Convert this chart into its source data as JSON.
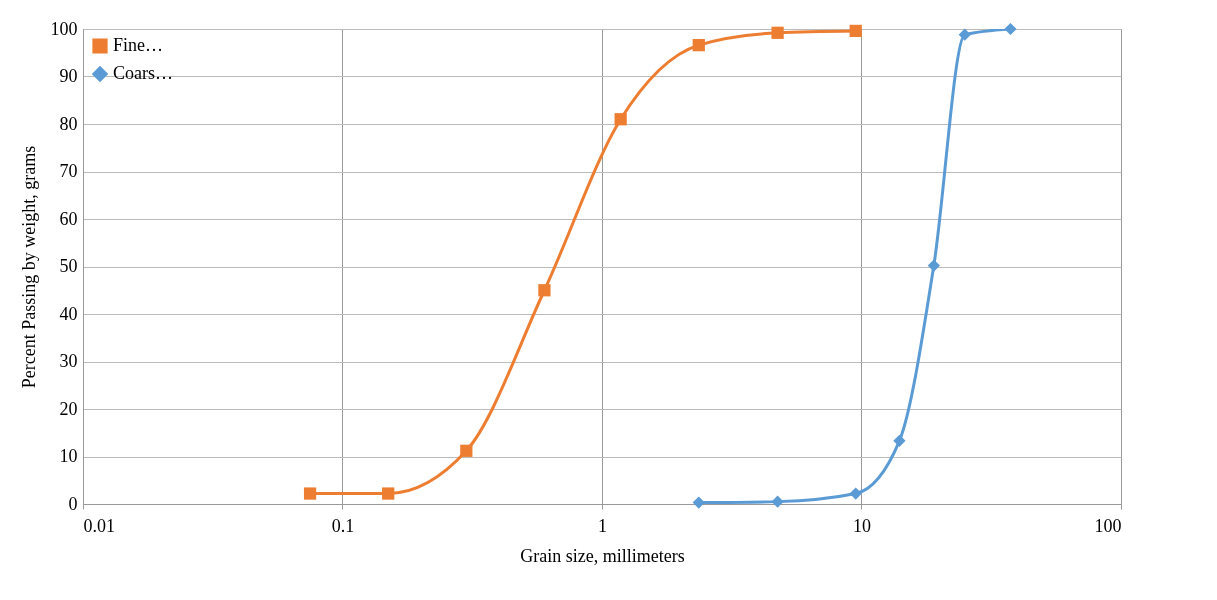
{
  "chart_data": {
    "type": "line",
    "xlabel": "Grain size, millimeters",
    "ylabel": "Percent Passing by weight, grams",
    "log": "x",
    "xlim": [
      0.01,
      100
    ],
    "xticks": [
      0.01,
      0.1,
      1,
      10,
      100
    ],
    "ylim": [
      0,
      100
    ],
    "yticks": [
      0,
      10,
      20,
      30,
      40,
      50,
      60,
      70,
      80,
      90,
      100
    ],
    "grid": true,
    "legend": "top left",
    "line_style": "solid",
    "series": [
      {
        "name": "Fine…",
        "color": "#ed7d31",
        "marker": "square",
        "x": [
          0.075,
          0.15,
          0.3,
          0.6,
          1.18,
          2.36,
          4.75,
          9.5
        ],
        "values": [
          2.2,
          2.2,
          11.2,
          45,
          81,
          96.6,
          99.2,
          99.6
        ]
      },
      {
        "name": "Coars…",
        "color": "#5b9bd5",
        "marker": "diamond",
        "x": [
          2.36,
          4.75,
          9.5,
          14,
          19,
          25,
          37.5
        ],
        "values": [
          0.3,
          0.5,
          2.2,
          13.3,
          50.2,
          98.8,
          100
        ]
      }
    ]
  }
}
